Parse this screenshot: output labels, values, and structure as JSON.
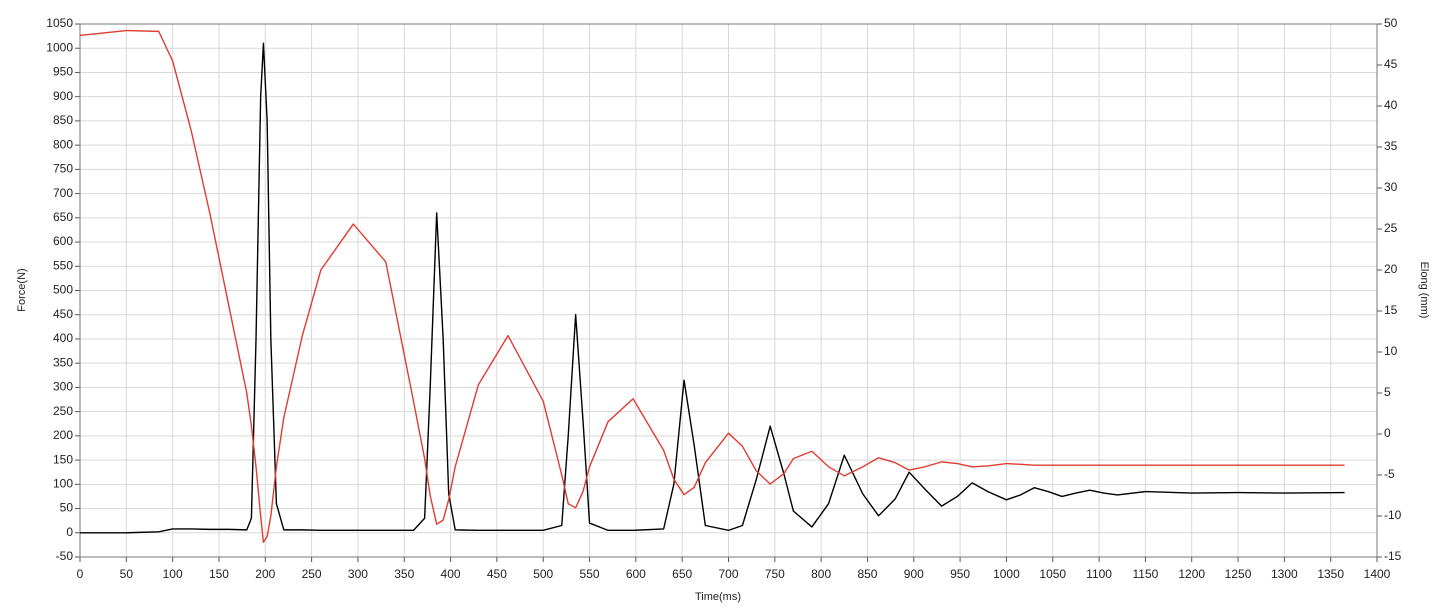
{
  "chart_data": {
    "type": "line",
    "xlabel": "Time(ms)",
    "ylabel": "Force(N)",
    "y2label": "Elong (mm)",
    "x": [
      0,
      50,
      85,
      100,
      120,
      140,
      160,
      180,
      185,
      190,
      195,
      198,
      202,
      206,
      212,
      220,
      240,
      260,
      295,
      330,
      360,
      372,
      378,
      385,
      392,
      398,
      405,
      430,
      462,
      500,
      520,
      527,
      535,
      543,
      550,
      570,
      597,
      630,
      641,
      652,
      663,
      675,
      700,
      715,
      730,
      745,
      760,
      770,
      790,
      808,
      825,
      845,
      862,
      880,
      895,
      912,
      930,
      947,
      963,
      980,
      1000,
      1015,
      1030,
      1045,
      1060,
      1075,
      1090,
      1105,
      1120,
      1150,
      1200,
      1250,
      1300,
      1365
    ],
    "series": [
      {
        "name": "Force(N)",
        "color": "#000000",
        "axis": "y",
        "values": [
          0,
          0,
          2,
          8,
          8,
          7,
          7,
          6,
          30,
          400,
          900,
          1010,
          850,
          400,
          60,
          6,
          6,
          5,
          5,
          5,
          5,
          30,
          300,
          660,
          400,
          80,
          6,
          5,
          5,
          5,
          15,
          200,
          450,
          230,
          20,
          5,
          5,
          8,
          100,
          315,
          180,
          15,
          5,
          15,
          110,
          220,
          120,
          45,
          12,
          60,
          160,
          80,
          35,
          70,
          125,
          90,
          55,
          75,
          103,
          85,
          68,
          78,
          93,
          85,
          75,
          82,
          88,
          82,
          78,
          85,
          82,
          83,
          82,
          83
        ]
      },
      {
        "name": "Elong (mm)",
        "color": "#e03c31",
        "axis": "y2",
        "values": [
          48.6,
          49.2,
          49.1,
          45.5,
          37,
          27,
          16,
          5,
          1,
          -4,
          -10,
          -13.2,
          -12.5,
          -10,
          -4,
          2,
          12,
          20,
          25.6,
          21,
          4,
          -3,
          -7.5,
          -11,
          -10.5,
          -8,
          -4,
          6,
          12,
          4,
          -5,
          -8.5,
          -9,
          -7,
          -4,
          1.5,
          4.3,
          -2,
          -5.5,
          -7.4,
          -6.5,
          -3.5,
          0.1,
          -1.5,
          -4.5,
          -6.1,
          -4.8,
          -3,
          -2.1,
          -4,
          -5.1,
          -4,
          -2.9,
          -3.5,
          -4.4,
          -4,
          -3.4,
          -3.6,
          -4,
          -3.9,
          -3.6,
          -3.7,
          -3.8,
          -3.8,
          -3.8,
          -3.8,
          -3.8,
          -3.8,
          -3.8,
          -3.8,
          -3.8,
          -3.8,
          -3.8,
          -3.8
        ]
      }
    ],
    "xlim": [
      0,
      1400
    ],
    "xticks": [
      0,
      50,
      100,
      150,
      200,
      250,
      300,
      350,
      400,
      450,
      500,
      550,
      600,
      650,
      700,
      750,
      800,
      850,
      900,
      950,
      1000,
      1050,
      1100,
      1150,
      1200,
      1250,
      1300,
      1350,
      1400
    ],
    "ylim": [
      -50,
      1050
    ],
    "yticks": [
      -50,
      0,
      50,
      100,
      150,
      200,
      250,
      300,
      350,
      400,
      450,
      500,
      550,
      600,
      650,
      700,
      750,
      800,
      850,
      900,
      950,
      1000,
      1050
    ],
    "y2lim": [
      -15,
      50
    ],
    "y2ticks": [
      -15,
      -10,
      -5,
      0,
      5,
      10,
      15,
      20,
      25,
      30,
      35,
      40,
      45,
      50
    ],
    "grid": true
  }
}
